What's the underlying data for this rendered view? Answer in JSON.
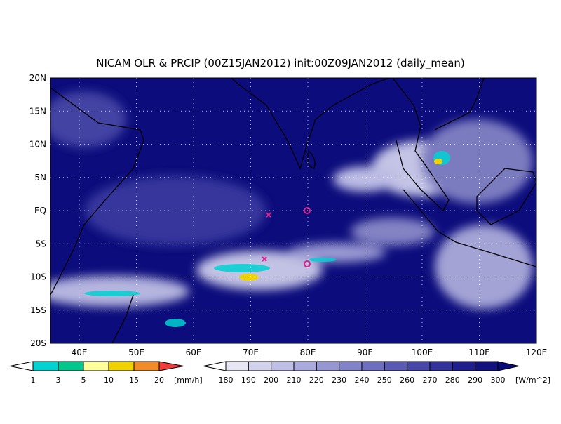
{
  "title": "NICAM OLR & PRCIP (00Z15JAN2012) init:00Z09JAN2012 (daily_mean)",
  "lat_labels": [
    "20N",
    "15N",
    "10N",
    "5N",
    "EQ",
    "5S",
    "10S",
    "15S",
    "20S"
  ],
  "lon_labels": [
    "40E",
    "50E",
    "60E",
    "70E",
    "80E",
    "90E",
    "100E",
    "110E",
    "120E"
  ],
  "precip_legend": {
    "labels": [
      "1",
      "3",
      "5",
      "10",
      "15",
      "20"
    ],
    "unit": "[mm/h]",
    "colors": [
      "#ffffff",
      "#00d2d2",
      "#00c88c",
      "#ffff9a",
      "#f0d200",
      "#f08c28",
      "#f03c3c"
    ]
  },
  "olr_legend": {
    "labels": [
      "180",
      "190",
      "200",
      "210",
      "220",
      "230",
      "240",
      "250",
      "260",
      "270",
      "280",
      "290",
      "300"
    ],
    "unit": "[W/m^2]",
    "colors": [
      "#ffffff",
      "#e6e6f5",
      "#d2d2ed",
      "#bebee6",
      "#aaaadc",
      "#9696d2",
      "#8282c8",
      "#6e6ebe",
      "#5a5ab4",
      "#4646a8",
      "#32329b",
      "#1e1e8c",
      "#12127f",
      "#0a0a78"
    ]
  }
}
